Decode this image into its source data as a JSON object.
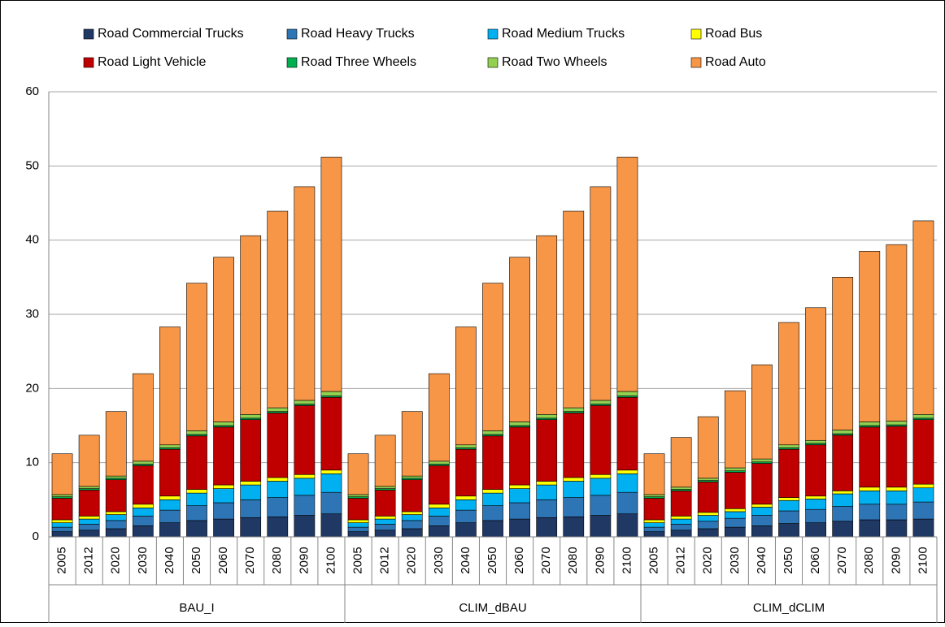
{
  "chart_data": {
    "type": "stacked_bar",
    "categories": [
      "2005",
      "2012",
      "2020",
      "2030",
      "2040",
      "2050",
      "2060",
      "2070",
      "2080",
      "2090",
      "2100",
      "2005",
      "2012",
      "2020",
      "2030",
      "2040",
      "2050",
      "2060",
      "2070",
      "2080",
      "2090",
      "2100",
      "2005",
      "2012",
      "2020",
      "2030",
      "2040",
      "2050",
      "2060",
      "2070",
      "2080",
      "2090",
      "2100"
    ],
    "category_groups": [
      "BAU_I",
      "CLIM_dBAU",
      "CLIM_dCLIM"
    ],
    "series": [
      {
        "name": "Road Commercial Trucks",
        "color": "#1f3864",
        "values": [
          0.7,
          0.9,
          1.1,
          1.5,
          1.9,
          2.2,
          2.4,
          2.6,
          2.7,
          2.9,
          3.1,
          0.7,
          0.9,
          1.1,
          1.5,
          1.9,
          2.2,
          2.4,
          2.6,
          2.7,
          2.9,
          3.1,
          0.7,
          0.9,
          1.1,
          1.3,
          1.5,
          1.8,
          1.9,
          2.1,
          2.3,
          2.3,
          2.4
        ]
      },
      {
        "name": "Road Heavy Trucks",
        "color": "#2e75b6",
        "values": [
          0.6,
          0.8,
          1.1,
          1.3,
          1.7,
          2.0,
          2.2,
          2.4,
          2.6,
          2.7,
          2.9,
          0.6,
          0.8,
          1.1,
          1.3,
          1.7,
          2.0,
          2.2,
          2.4,
          2.6,
          2.7,
          2.9,
          0.6,
          0.8,
          1.0,
          1.2,
          1.4,
          1.7,
          1.8,
          2.0,
          2.1,
          2.1,
          2.3
        ]
      },
      {
        "name": "Road Medium Trucks",
        "color": "#00b0f0",
        "values": [
          0.6,
          0.7,
          0.8,
          1.1,
          1.4,
          1.7,
          1.9,
          2.0,
          2.2,
          2.3,
          2.5,
          0.6,
          0.7,
          0.8,
          1.1,
          1.4,
          1.7,
          1.9,
          2.0,
          2.2,
          2.3,
          2.5,
          0.6,
          0.7,
          0.8,
          0.9,
          1.1,
          1.4,
          1.4,
          1.7,
          1.8,
          1.8,
          1.9
        ]
      },
      {
        "name": "Road Bus",
        "color": "#ffff00",
        "values": [
          0.4,
          0.4,
          0.4,
          0.5,
          0.5,
          0.5,
          0.5,
          0.5,
          0.5,
          0.5,
          0.5,
          0.4,
          0.4,
          0.4,
          0.5,
          0.5,
          0.5,
          0.5,
          0.5,
          0.5,
          0.5,
          0.5,
          0.4,
          0.4,
          0.4,
          0.4,
          0.4,
          0.4,
          0.4,
          0.4,
          0.5,
          0.5,
          0.5
        ]
      },
      {
        "name": "Road Light Vehicle",
        "color": "#c00000",
        "values": [
          2.9,
          3.5,
          4.3,
          5.2,
          6.3,
          7.2,
          7.8,
          8.3,
          8.7,
          9.3,
          9.8,
          2.9,
          3.5,
          4.3,
          5.2,
          6.3,
          7.2,
          7.8,
          8.3,
          8.7,
          9.3,
          9.8,
          2.9,
          3.4,
          4.1,
          4.9,
          5.5,
          6.5,
          6.9,
          7.5,
          8.1,
          8.2,
          8.7
        ]
      },
      {
        "name": "Road Three Wheels",
        "color": "#00b050",
        "values": [
          0.2,
          0.2,
          0.2,
          0.2,
          0.2,
          0.2,
          0.2,
          0.2,
          0.2,
          0.2,
          0.2,
          0.2,
          0.2,
          0.2,
          0.2,
          0.2,
          0.2,
          0.2,
          0.2,
          0.2,
          0.2,
          0.2,
          0.2,
          0.2,
          0.2,
          0.2,
          0.2,
          0.2,
          0.2,
          0.2,
          0.2,
          0.2,
          0.2
        ]
      },
      {
        "name": "Road Two Wheels",
        "color": "#92d050",
        "values": [
          0.3,
          0.3,
          0.3,
          0.4,
          0.4,
          0.5,
          0.5,
          0.5,
          0.5,
          0.5,
          0.6,
          0.3,
          0.3,
          0.3,
          0.4,
          0.4,
          0.5,
          0.5,
          0.5,
          0.5,
          0.5,
          0.6,
          0.3,
          0.3,
          0.3,
          0.4,
          0.4,
          0.4,
          0.4,
          0.5,
          0.5,
          0.5,
          0.5
        ]
      },
      {
        "name": "Road Auto",
        "color": "#f79646",
        "values": [
          5.5,
          6.9,
          8.7,
          11.8,
          15.9,
          19.9,
          22.2,
          24.1,
          26.5,
          28.8,
          31.6,
          5.5,
          6.9,
          8.7,
          11.8,
          15.9,
          19.9,
          22.2,
          24.1,
          26.5,
          28.8,
          31.6,
          5.5,
          6.7,
          8.3,
          10.4,
          12.7,
          16.5,
          17.9,
          20.6,
          23.0,
          23.8,
          26.1
        ]
      }
    ],
    "ylim": [
      0,
      60
    ],
    "yticks": [
      0,
      10,
      20,
      30,
      40,
      50,
      60
    ],
    "grid": true,
    "legend": "top"
  }
}
